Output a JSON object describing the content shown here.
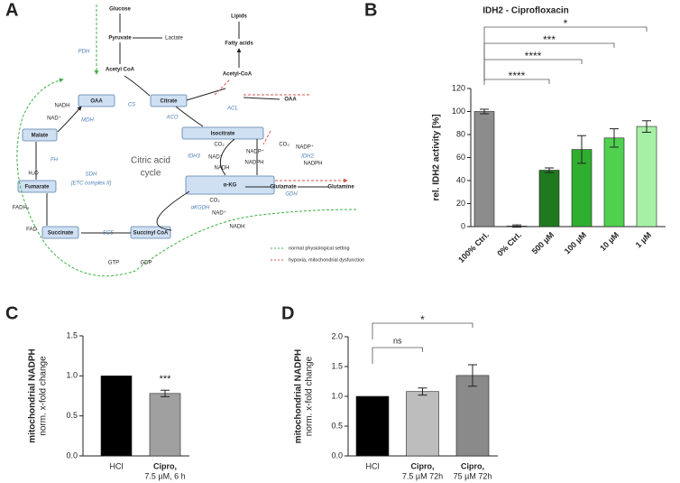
{
  "panel_labels": [
    "A",
    "B",
    "C",
    "D"
  ],
  "diagram": {
    "labels": [
      "Glucose",
      "Pyruvate",
      "Lactate",
      "PDH",
      "Acetyl CoA",
      "Lipids",
      "Fatty acids",
      "Acetyl-CoA",
      "OAA",
      "ACL",
      "CS",
      "OAA",
      "Citrate",
      "ACO",
      "Isocitrate",
      "MDH",
      "NADH",
      "NAD⁺",
      "Malate",
      "Citric acid",
      "cycle",
      "FH",
      "H₂O",
      "Fumarate",
      "IDH3",
      "CO₂",
      "NAD⁺",
      "NADH",
      "NADP⁺",
      "NADPH",
      "CO₂",
      "NADP⁺",
      "NADPH",
      "IDH2",
      "α-KG",
      "Glutamate",
      "Glutamine",
      "GDH",
      "SDH",
      "(ETC complex II)",
      "FADH₂",
      "FAD",
      "αKGDH",
      "CO₂",
      "NAD⁺",
      "NADH",
      "Succinate",
      "Succinyl CoA",
      "SCS",
      "GTP",
      "GDP",
      "normal physiological setting",
      "hypoxia, mitochondrial dysfunction"
    ]
  },
  "chart_data": [
    {
      "type": "bar",
      "title": "IDH2 - Ciprofloxacin",
      "ylabel": [
        "rel. IDH2 activity [%]"
      ],
      "categories": [
        "100% Ctrl.",
        "0% Ctrl.",
        "500 µM",
        "100 µM",
        "10 µM",
        "1 µM"
      ],
      "values": [
        100,
        0.5,
        49,
        67,
        77,
        87
      ],
      "errors": [
        2,
        1,
        2,
        12,
        8,
        5
      ],
      "colors": [
        "#8c8c8c",
        "#ffffff",
        "#1f7a1f",
        "#2fae2f",
        "#4fd14f",
        "#a6f0a6"
      ],
      "ylim": [
        0,
        120
      ],
      "yticks": [
        0,
        20,
        40,
        60,
        80,
        100,
        120
      ],
      "comparisons": [
        {
          "from": 0,
          "to": 5,
          "label": "*"
        },
        {
          "from": 0,
          "to": 4,
          "label": "***"
        },
        {
          "from": 0,
          "to": 3,
          "label": "****"
        },
        {
          "from": 0,
          "to": 2,
          "label": "****"
        }
      ]
    },
    {
      "type": "bar",
      "ylabel": [
        "mitochondrial NADPH",
        "norm. x-fold change"
      ],
      "categories": [
        "HCl",
        "Cipro,"
      ],
      "sublabels": [
        null,
        "7.5 µM, 6 h"
      ],
      "values": [
        1.0,
        0.78
      ],
      "errors": [
        0,
        0.04
      ],
      "colors": [
        "#000000",
        "#a0a0a0"
      ],
      "ylim": [
        0,
        1.5
      ],
      "yticks": [
        {
          "value": 0,
          "label": "0.0"
        },
        0.5,
        {
          "value": 1,
          "label": "1.0"
        },
        1.5
      ],
      "annotations": [
        {
          "category": 1,
          "label": "***"
        }
      ]
    },
    {
      "type": "bar",
      "ylabel": [
        "mitochondrial NADPH",
        "norm. x-fold change"
      ],
      "categories": [
        "HCl",
        "Cipro,",
        "Cipro,"
      ],
      "sublabels": [
        null,
        "7.5 µM 72h",
        "75 µM 72h"
      ],
      "values": [
        1.0,
        1.08,
        1.35
      ],
      "errors": [
        0,
        0.06,
        0.18
      ],
      "colors": [
        "#000000",
        "#bdbdbd",
        "#8a8a8a"
      ],
      "ylim": [
        0,
        2
      ],
      "yticks": [
        {
          "value": 0,
          "label": "0.0"
        },
        0.5,
        {
          "value": 1,
          "label": "1.0"
        },
        1.5,
        {
          "value": 2,
          "label": "2.0"
        }
      ],
      "comparisons": [
        {
          "from": 0,
          "to": 2,
          "label": "*"
        },
        {
          "from": 0,
          "to": 1,
          "label": "ns"
        }
      ]
    }
  ]
}
